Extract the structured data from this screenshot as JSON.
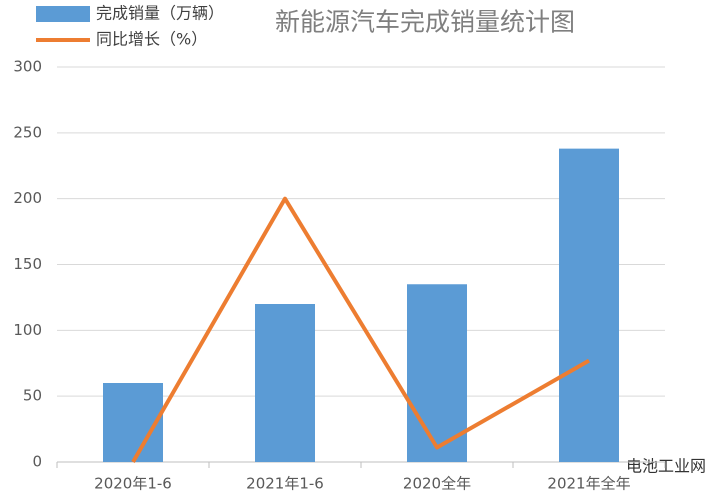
{
  "chart_data": {
    "type": "combo",
    "title": "新能源汽车完成销量统计图",
    "categories": [
      "2020年1-6",
      "2021年1-6",
      "2020全年",
      "2021年全年"
    ],
    "series": [
      {
        "name": "完成销量（万辆）",
        "type": "bar",
        "color": "#5b9bd5",
        "values": [
          60,
          120,
          135,
          238
        ]
      },
      {
        "name": "同比增长（%）",
        "type": "line",
        "color": "#ed7d31",
        "values": [
          0,
          200,
          11,
          77
        ]
      }
    ],
    "ylim": [
      0,
      300
    ],
    "yticks": [
      0,
      50,
      100,
      150,
      200,
      250,
      300
    ],
    "grid": true,
    "legend": "top-left",
    "watermark": "电池工业网"
  }
}
